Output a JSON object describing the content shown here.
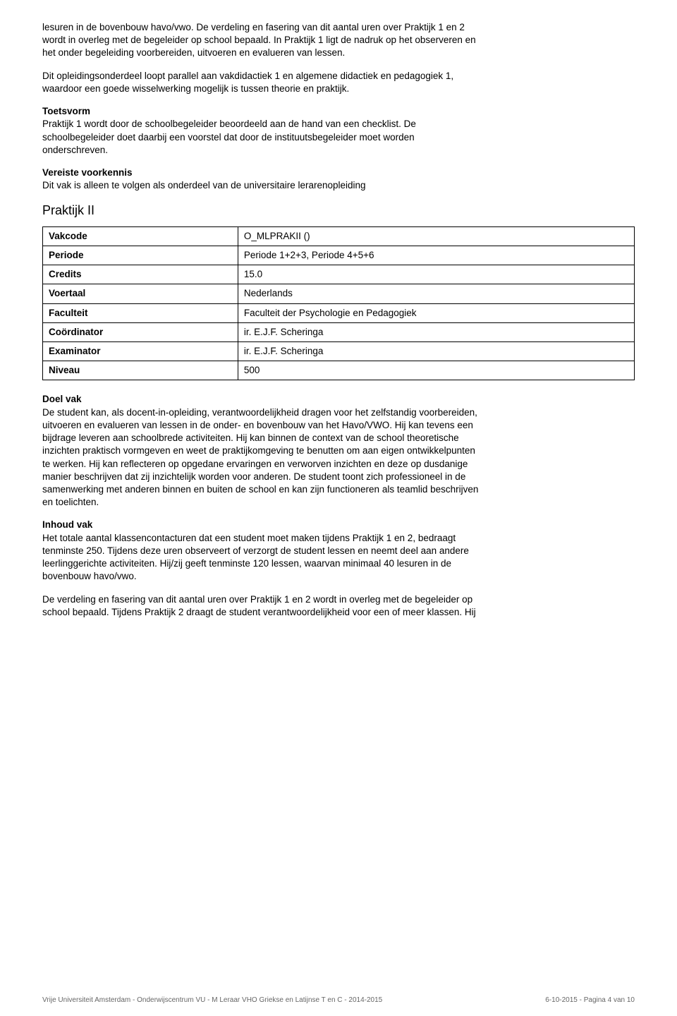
{
  "para1": "lesuren in de bovenbouw havo/vwo.\nDe verdeling en fasering van dit aantal uren over Praktijk 1 en 2 wordt in overleg met de begeleider op school bepaald. In Praktijk 1 ligt de nadruk op het observeren en het onder begeleiding voorbereiden, uitvoeren en evalueren van lessen.",
  "para2": "Dit opleidingsonderdeel loopt parallel aan vakdidactiek 1 en algemene didactiek en pedagogiek 1, waardoor een goede wisselwerking mogelijk is tussen theorie en praktijk.",
  "toetsvorm_heading": "Toetsvorm",
  "toetsvorm_body": "Praktijk 1 wordt door de schoolbegeleider beoordeeld aan de hand van een checklist. De schoolbegeleider doet daarbij een voorstel dat door de instituutsbegeleider moet worden onderschreven.",
  "voorkennis_heading": "Vereiste voorkennis",
  "voorkennis_body": "Dit vak is alleen te volgen als onderdeel van de universitaire lerarenopleiding",
  "section_title": "Praktijk II",
  "table": {
    "rows": [
      {
        "label": "Vakcode",
        "value": "O_MLPRAKII ()"
      },
      {
        "label": "Periode",
        "value": "Periode 1+2+3, Periode 4+5+6"
      },
      {
        "label": "Credits",
        "value": "15.0"
      },
      {
        "label": "Voertaal",
        "value": "Nederlands"
      },
      {
        "label": "Faculteit",
        "value": "Faculteit der Psychologie en Pedagogiek"
      },
      {
        "label": "Coördinator",
        "value": "ir. E.J.F. Scheringa"
      },
      {
        "label": "Examinator",
        "value": "ir. E.J.F. Scheringa"
      },
      {
        "label": "Niveau",
        "value": "500"
      }
    ]
  },
  "doel_heading": "Doel vak",
  "doel_body": "De student kan, als docent-in-opleiding, verantwoordelijkheid dragen voor het zelfstandig voorbereiden, uitvoeren en evalueren van lessen in de onder- en bovenbouw van het Havo/VWO. Hij kan tevens een bijdrage leveren aan schoolbrede activiteiten. Hij kan binnen de context van de school theoretische inzichten praktisch vormgeven en weet de praktijkomgeving te benutten om aan eigen ontwikkelpunten te werken. Hij kan reflecteren op opgedane ervaringen en verworven inzichten en deze op dusdanige manier beschrijven dat zij inzichtelijk worden voor anderen. De student toont zich professioneel in de samenwerking met anderen binnen en buiten de school en kan zijn functioneren als teamlid beschrijven en toelichten.",
  "inhoud_heading": "Inhoud vak",
  "inhoud_body1": "Het totale aantal klassencontacturen dat een student moet maken tijdens Praktijk 1 en 2, bedraagt tenminste 250. Tijdens deze uren observeert of verzorgt de student lessen en neemt deel aan andere leerlinggerichte activiteiten. Hij/zij geeft tenminste 120 lessen, waarvan minimaal 40 lesuren in de bovenbouw havo/vwo.",
  "inhoud_body2": "De verdeling en fasering van dit aantal uren over Praktijk 1 en 2 wordt in overleg met de begeleider op school bepaald. Tijdens Praktijk 2 draagt de student verantwoordelijkheid voor een of meer klassen. Hij",
  "footer_left": "Vrije Universiteit Amsterdam - Onderwijscentrum VU - M Leraar VHO Griekse en Latijnse T en C - 2014-2015",
  "footer_right": "6-10-2015 - Pagina 4 van 10"
}
